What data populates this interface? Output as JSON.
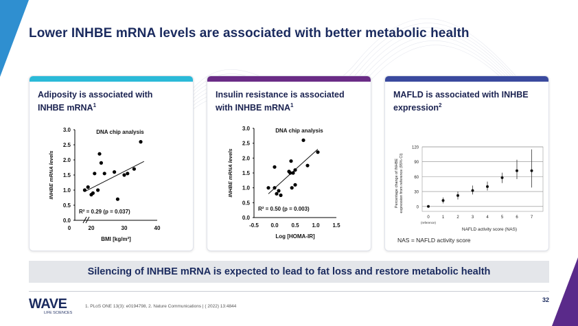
{
  "slide": {
    "title": "Lower INHBE mRNA levels are associated with better metabolic health",
    "conclusion": "Silencing of INHBE mRNA is expected to lead to fat loss and restore metabolic health",
    "page_number": "32",
    "references": "1. PLoS ONE 13(3): e0194798, 2. Nature Communications | ( 2022) 13:4844",
    "logo_text": "WAVE",
    "logo_subtext": "LIFE SCIENCES",
    "colors": {
      "title": "#1a2a5e",
      "bar1": "#2bbad8",
      "bar2": "#6a2c86",
      "bar3": "#3a4a9e",
      "accent": "#5a2a8a"
    }
  },
  "cards": [
    {
      "heading": "Adiposity is associated with INHBE mRNA",
      "heading_line1": "Adiposity is associated with",
      "heading_line2": "INHBE mRNA",
      "sup": "1"
    },
    {
      "heading": "Insulin resistance is associated with INHBE mRNA",
      "heading_line1": "Insulin resistance is associated",
      "heading_line2": "with INHBE mRNA",
      "sup": "1"
    },
    {
      "heading": "MAFLD is associated with INHBE expression",
      "heading_line1": "MAFLD is associated with INHBE",
      "heading_line2": "expression",
      "sup": "2",
      "note": "NAS = NAFLD activity score"
    }
  ],
  "chart_data": [
    {
      "type": "scatter",
      "title": "DNA chip analysis",
      "xlabel": "BMI [kg/m²]",
      "ylabel": "INHBE mRNA levels",
      "xticks": [
        "0",
        "20",
        "30",
        "40"
      ],
      "yticks": [
        "0.0",
        "0.5",
        "1.0",
        "1.5",
        "2.0",
        "2.5",
        "3.0"
      ],
      "xlim": [
        15,
        40
      ],
      "ylim": [
        0,
        3
      ],
      "annotation": "R² = 0.29 (p = 0.037)",
      "points": [
        [
          18,
          1.0
        ],
        [
          19,
          1.1
        ],
        [
          20,
          0.85
        ],
        [
          20.5,
          0.9
        ],
        [
          21,
          1.55
        ],
        [
          22,
          1.0
        ],
        [
          22.5,
          2.2
        ],
        [
          23,
          1.9
        ],
        [
          24,
          1.55
        ],
        [
          27,
          1.6
        ],
        [
          28,
          0.7
        ],
        [
          30,
          1.5
        ],
        [
          31,
          1.55
        ],
        [
          33,
          1.7
        ],
        [
          35,
          2.6
        ]
      ],
      "fit": [
        [
          18,
          0.95
        ],
        [
          36,
          1.95
        ]
      ]
    },
    {
      "type": "scatter",
      "title": "DNA chip analysis",
      "xlabel": "Log [HOMA-IR]",
      "ylabel": "INHBE mRNA levels",
      "xticks": [
        "-0.5",
        "0.0",
        "0.5",
        "1.0",
        "1.5"
      ],
      "yticks": [
        "0.0",
        "0.5",
        "1.0",
        "1.5",
        "2.0",
        "2.5",
        "3.0"
      ],
      "xlim": [
        -0.5,
        1.5
      ],
      "ylim": [
        0,
        3
      ],
      "annotation": "R² = 0.50 (p = 0.003)",
      "points": [
        [
          -0.15,
          1.0
        ],
        [
          0.0,
          1.7
        ],
        [
          0.0,
          1.0
        ],
        [
          0.05,
          0.8
        ],
        [
          0.1,
          0.9
        ],
        [
          0.15,
          0.75
        ],
        [
          0.35,
          1.55
        ],
        [
          0.38,
          1.5
        ],
        [
          0.4,
          1.9
        ],
        [
          0.42,
          1.0
        ],
        [
          0.45,
          1.5
        ],
        [
          0.5,
          1.1
        ],
        [
          0.5,
          1.6
        ],
        [
          0.7,
          2.6
        ],
        [
          0.8,
          1.75
        ],
        [
          1.05,
          2.2
        ]
      ],
      "fit": [
        [
          -0.15,
          0.8
        ],
        [
          1.05,
          2.3
        ]
      ]
    },
    {
      "type": "errorbar",
      "xlabel": "NAFLD activity score (NAS)",
      "ylabel": "Percentage change of INHBE expression from reference (95% CI)",
      "x": [
        0,
        1,
        2,
        3,
        4,
        5,
        6,
        7
      ],
      "xtick_note": "(reference)",
      "yticks": [
        "0",
        "30",
        "60",
        "90",
        "120"
      ],
      "ylim": [
        -10,
        120
      ],
      "values": [
        0,
        12,
        22,
        32,
        40,
        58,
        72,
        72
      ],
      "ci_low": [
        0,
        6,
        14,
        24,
        32,
        47,
        55,
        38
      ],
      "ci_high": [
        0,
        18,
        30,
        42,
        50,
        68,
        94,
        115
      ]
    }
  ]
}
